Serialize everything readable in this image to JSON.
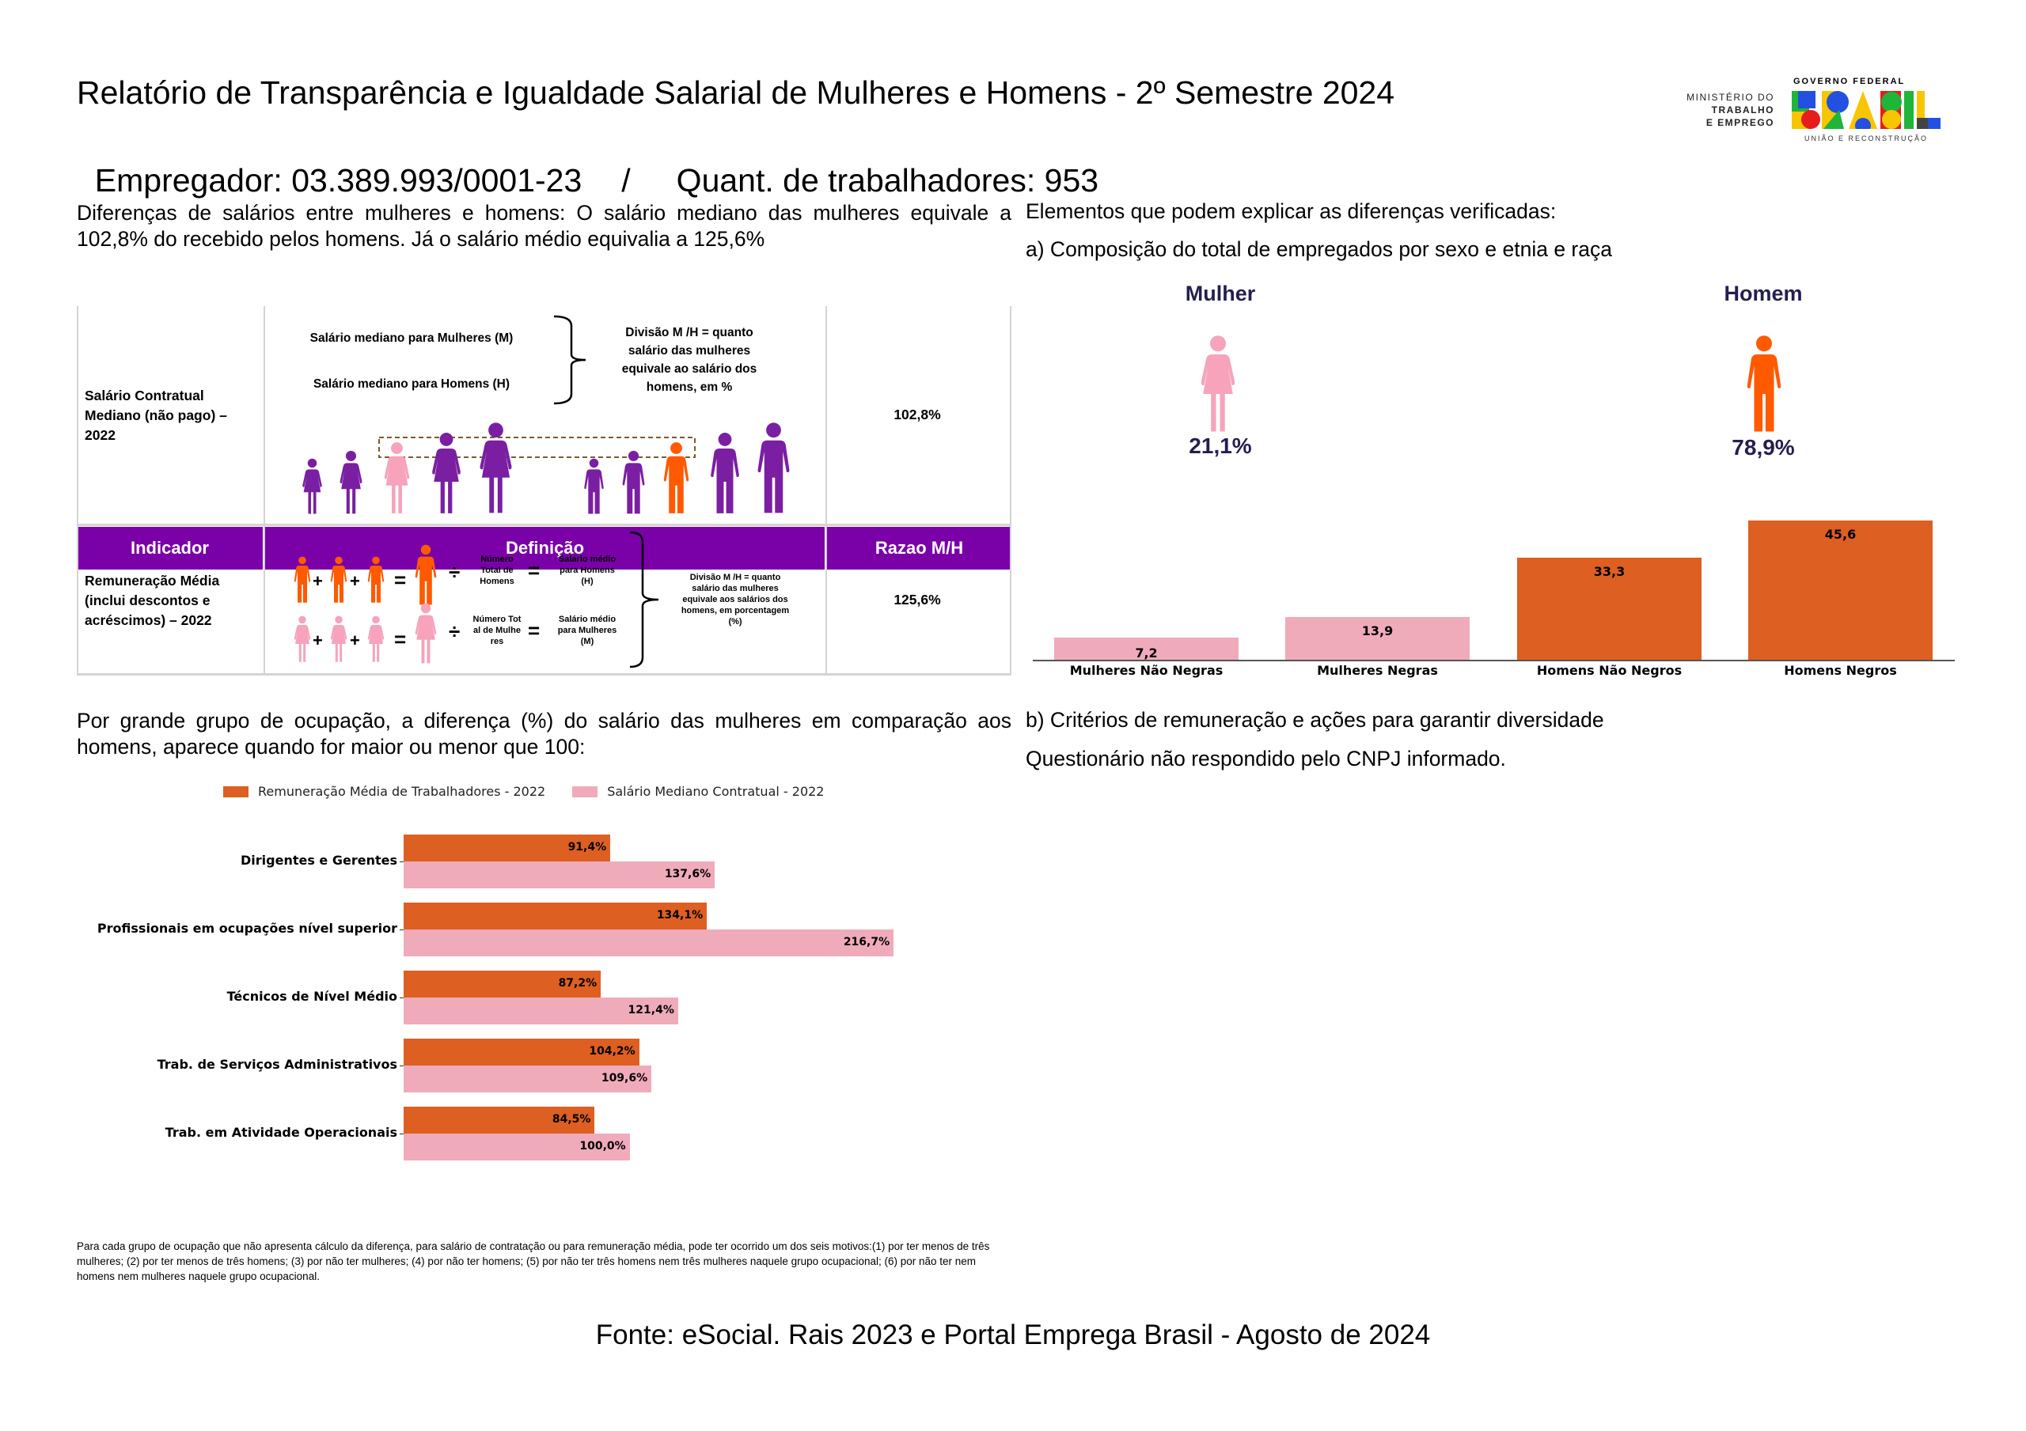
{
  "header": {
    "title": "Relatório de Transparência e Igualdade Salarial de Mulheres e Homens - 2º Semestre 2024",
    "subtitle_employer": "Empregador: 03.389.993/0001-23",
    "subtitle_separator": "/",
    "subtitle_workers": "Quant. de trabalhadores: 953"
  },
  "logo": {
    "ministry_line1": "MINISTÉRIO DO",
    "ministry_line2": "TRABALHO",
    "ministry_line3": "E EMPREGO",
    "gov_top": "GOVERNO FEDERAL",
    "gov_word": "BRASIL",
    "gov_bottom": "UNIÃO E RECONSTRUÇÃO"
  },
  "left": {
    "intro": "Diferenças de salários entre mulheres e homens: O salário mediano das mulheres equivale a 102,8% do recebido pelos homens. Já o salário médio equivalia a 125,6%",
    "table": {
      "headers": [
        "Indicador",
        "Definição",
        "Razao M/H"
      ],
      "rows": [
        {
          "indicator": "Salário Contratual Mediano (não pago) – 2022",
          "def_women": "Salário mediano para Mulheres (M)",
          "def_men": "Salário mediano para Homens (H)",
          "def_result": "Divisão M /H = quanto salário das mulheres equivale ao salário dos homens, em %",
          "ratio": "102,8%"
        },
        {
          "indicator": "Remuneração Média (inclui descontos e acréscimos) – 2022",
          "men_count": "Número Total de Homens",
          "men_avg": "Salário médio para Homens (H)",
          "women_count": "Número Total de Mulheres",
          "women_avg": "Salário médio para Mulheres (M)",
          "def_result": "Divisão M /H = quanto salário das mulheres equivale aos salários dos homens, em porcentagem (%)",
          "ratio": "125,6%",
          "plus": "+",
          "equals": "=",
          "divide": "÷"
        }
      ]
    },
    "occupation_intro": "Por grande grupo de ocupação, a diferença (%) do salário das mulheres em comparação aos homens, aparece quando for maior ou menor que 100:",
    "footnote": "Para cada grupo de ocupação que não apresenta cálculo da diferença, para salário de contratação ou para remuneração média, pode ter ocorrido um dos seis motivos:(1) por ter menos de três mulheres; (2) por ter menos de três homens; (3) por não ter mulheres; (4) por não ter homens; (5) por não ter três homens nem três mulheres naquele grupo ocupacional; (6) por não ter nem homens nem mulheres naquele grupo ocupacional."
  },
  "right": {
    "heading": "Elementos que podem explicar as diferenças verificadas:",
    "section_a": "a) Composição do total de empregados por sexo e etnia e raça",
    "woman_label": "Mulher",
    "woman_pct": "21,1%",
    "man_label": "Homem",
    "man_pct": "78,9%",
    "section_b": "b) Critérios de remuneração e ações para garantir diversidade",
    "section_b_text": "Questionário não respondido pelo CNPJ informado."
  },
  "colors": {
    "header_purple": "#7a00a8",
    "figure_purple": "#7a1fa2",
    "figure_pink": "#f6a3bb",
    "figure_orange": "#ff5a00",
    "bar_orange": "#dd5f22",
    "bar_pink": "#f0abbb",
    "navy": "#241f4f"
  },
  "chart_data": [
    {
      "type": "bar",
      "categories": [
        "Mulheres Não Negras",
        "Mulheres Negras",
        "Homens Não Negros",
        "Homens Negros"
      ],
      "values": [
        7.2,
        13.9,
        33.3,
        45.6
      ],
      "value_labels": [
        "7,2",
        "13,9",
        "33,3",
        "45,6"
      ],
      "bar_colors": [
        "#f0abbb",
        "#f0abbb",
        "#dd5f22",
        "#dd5f22"
      ],
      "grid": false
    },
    {
      "type": "bar",
      "orientation": "horizontal",
      "categories": [
        "Dirigentes e Gerentes",
        "Profissionais em ocupações nível superior",
        "Técnicos de Nível Médio",
        "Trab. de Serviços Administrativos",
        "Trab. em Atividade Operacionais"
      ],
      "series": [
        {
          "name": "Remuneração Média de Trabalhadores - 2022",
          "color": "#dd5f22",
          "values": [
            91.4,
            134.1,
            87.2,
            104.2,
            84.5
          ],
          "labels": [
            "91,4%",
            "134,1%",
            "87,2%",
            "104,2%",
            "84,5%"
          ]
        },
        {
          "name": "Salário Mediano Contratual - 2022",
          "color": "#f0abbb",
          "values": [
            137.6,
            216.7,
            121.4,
            109.6,
            100.0
          ],
          "labels": [
            "137,6%",
            "216,7%",
            "121,4%",
            "109,6%",
            "100,0%"
          ]
        }
      ],
      "legend": "top",
      "grid": false
    }
  ],
  "footer": {
    "source": "Fonte: eSocial. Rais 2023 e Portal Emprega Brasil - Agosto de 2024"
  }
}
